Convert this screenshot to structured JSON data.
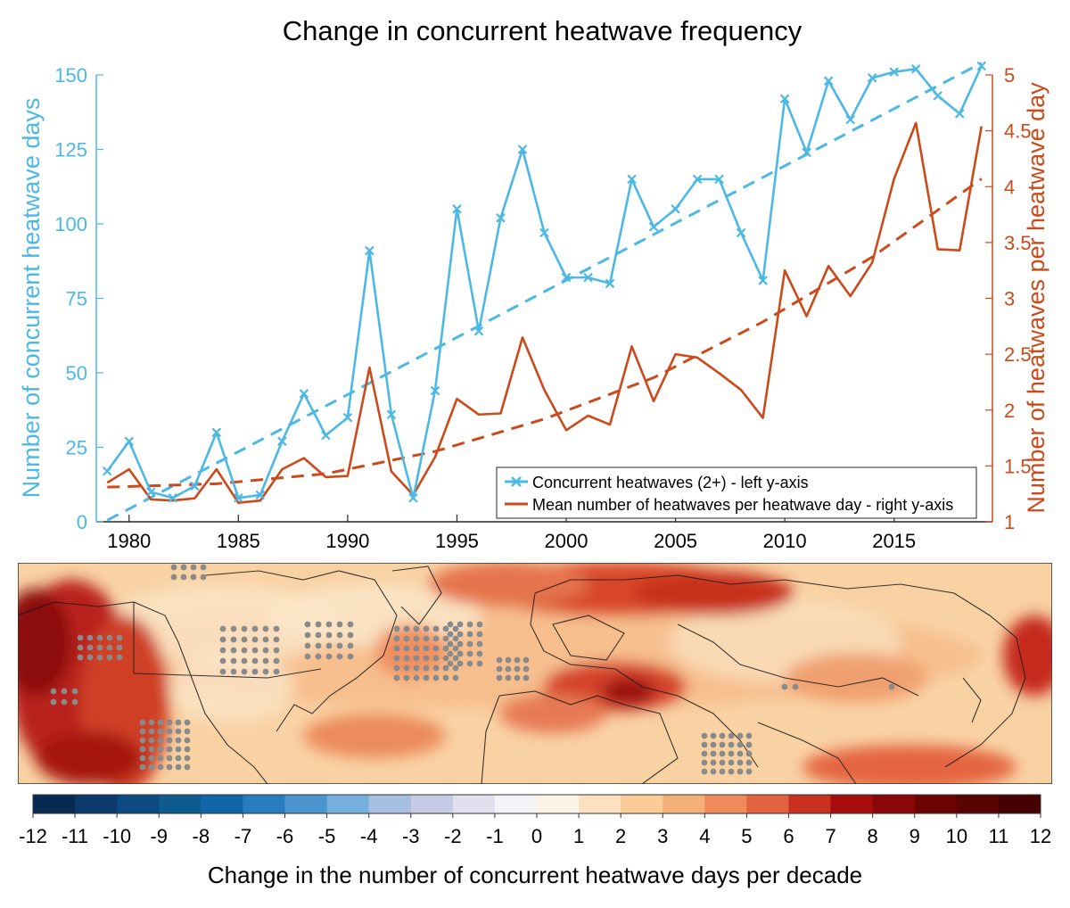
{
  "figure": {
    "title": "Change in concurrent heatwave frequency",
    "map_colorbar_label": "Change in the number of concurrent heatwave days per decade"
  },
  "chart_data": [
    {
      "type": "line",
      "x": [
        1979,
        1980,
        1981,
        1982,
        1983,
        1984,
        1985,
        1986,
        1987,
        1988,
        1989,
        1990,
        1991,
        1992,
        1993,
        1994,
        1995,
        1996,
        1997,
        1998,
        1999,
        2000,
        2001,
        2002,
        2003,
        2004,
        2005,
        2006,
        2007,
        2008,
        2009,
        2010,
        2011,
        2012,
        2013,
        2014,
        2015,
        2016,
        2017,
        2018,
        2019
      ],
      "x_ticks": [
        1980,
        1985,
        1990,
        1995,
        2000,
        2005,
        2010,
        2015
      ],
      "xlim": [
        1978.5,
        2019.5
      ],
      "ylabel_left": "Number of concurrent heatwave days",
      "ylabel_right": "Number of heatwaves per heatwave day",
      "ylim_left": [
        0,
        150
      ],
      "ylim_right": [
        1,
        5
      ],
      "y_ticks_left": [
        0,
        25,
        50,
        75,
        100,
        125,
        150
      ],
      "y_ticks_right": [
        1,
        1.5,
        2,
        2.5,
        3,
        3.5,
        4,
        4.5,
        5
      ],
      "grid": false,
      "legend_position": "bottom-right",
      "colors": {
        "left_series": "#4bb8e6",
        "right_series": "#cc4a1a"
      },
      "series": [
        {
          "name": "Concurrent heatwaves (2+) - left y-axis",
          "axis": "left",
          "marker": "x",
          "values": [
            17,
            27,
            10,
            8,
            12,
            30,
            8,
            9,
            27,
            43,
            29,
            35,
            91,
            36,
            8,
            44,
            105,
            64,
            102,
            125,
            97,
            82,
            82,
            80,
            115,
            99,
            105,
            115,
            115,
            97,
            81,
            142,
            124,
            148,
            135,
            149,
            151,
            152,
            143,
            137,
            153
          ],
          "trend": [
            0.5,
            154
          ]
        },
        {
          "name": "Mean number of heatwaves per heatwave day - right y-axis",
          "axis": "right",
          "marker": "none",
          "values": [
            1.35,
            1.47,
            1.2,
            1.19,
            1.21,
            1.47,
            1.17,
            1.19,
            1.47,
            1.57,
            1.4,
            1.41,
            2.38,
            1.45,
            1.24,
            1.58,
            2.1,
            1.96,
            1.97,
            2.65,
            2.18,
            1.82,
            1.95,
            1.87,
            2.57,
            2.08,
            2.5,
            2.47,
            2.33,
            2.18,
            1.93,
            3.25,
            2.84,
            3.29,
            3.02,
            3.32,
            4.07,
            4.57,
            3.44,
            3.43,
            4.54
          ],
          "trend_curve": [
            [
              1979,
              1.31
            ],
            [
              1984,
              1.34
            ],
            [
              1989,
              1.43
            ],
            [
              1994,
              1.63
            ],
            [
              1999,
              1.92
            ],
            [
              2004,
              2.29
            ],
            [
              2009,
              2.79
            ],
            [
              2014,
              3.37
            ],
            [
              2019,
              4.07
            ]
          ]
        }
      ]
    },
    {
      "type": "heatmap",
      "map_region": "Northern Hemisphere mid-latitudes",
      "colorbar": {
        "ticks": [
          "-12",
          "-11",
          "-10",
          "-9",
          "-8",
          "-7",
          "-6",
          "-5",
          "-4",
          "-3",
          "-2",
          "-1",
          "0",
          "1",
          "2",
          "3",
          "4",
          "5",
          "6",
          "7",
          "8",
          "9",
          "10",
          "11",
          "12"
        ],
        "colors": [
          "#082a52",
          "#0b3a6a",
          "#0a4a80",
          "#0e5b90",
          "#1266a8",
          "#2a7cc0",
          "#4b95cf",
          "#75afdb",
          "#a7bfe0",
          "#c7cbe5",
          "#e2e0ef",
          "#f6f3f8",
          "#fdf4e8",
          "#fbe1c1",
          "#f9cc98",
          "#f5b07a",
          "#ef8b5a",
          "#e2623f",
          "#c8311f",
          "#a80d0d",
          "#8c0707",
          "#6d0404",
          "#5a0303",
          "#440202"
        ]
      }
    }
  ]
}
